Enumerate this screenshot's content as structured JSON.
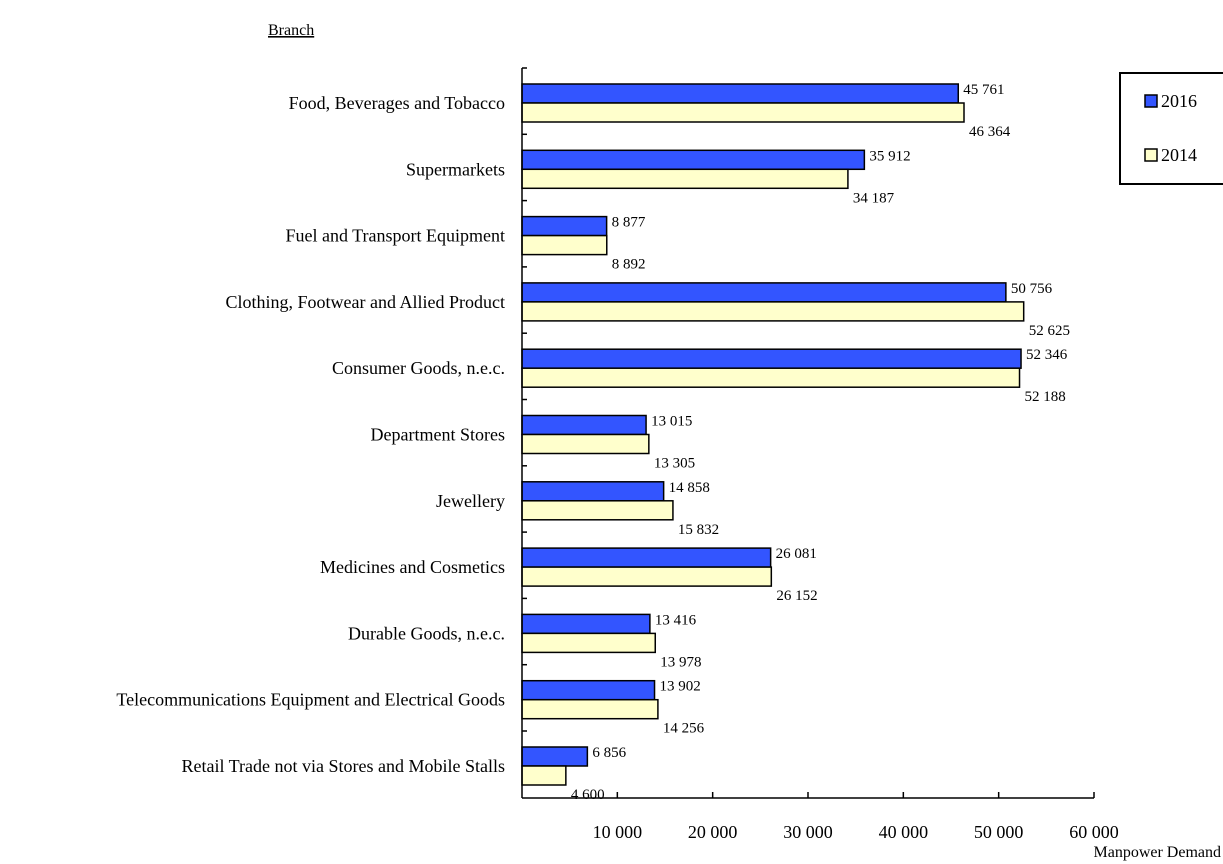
{
  "chart_data": {
    "type": "bar",
    "orientation": "horizontal",
    "y_axis_title": "Branch",
    "x_axis_title": "Manpower Demand",
    "categories": [
      "Food, Beverages and Tobacco",
      "Supermarkets",
      "Fuel and Transport Equipment",
      "Clothing, Footwear and Allied Product",
      "Consumer Goods, n.e.c.",
      "Department Stores",
      "Jewellery",
      "Medicines and Cosmetics",
      "Durable Goods, n.e.c.",
      "Telecommunications Equipment and Electrical Goods",
      "Retail Trade not via Stores and Mobile Stalls"
    ],
    "series": [
      {
        "name": "2016",
        "color": "#3355ff",
        "values": [
          45761,
          35912,
          8877,
          50756,
          52346,
          13015,
          14858,
          26081,
          13416,
          13902,
          6856
        ],
        "value_labels": [
          "45 761",
          "35 912",
          "8 877",
          "50 756",
          "52 346",
          "13 015",
          "14 858",
          "26 081",
          "13 416",
          "13 902",
          "6 856"
        ]
      },
      {
        "name": "2014",
        "color": "#ffffcc",
        "values": [
          46364,
          34187,
          8892,
          52625,
          52188,
          13305,
          15832,
          26152,
          13978,
          14256,
          4600
        ],
        "value_labels": [
          "46 364",
          "34 187",
          "8 892",
          "52 625",
          "52 188",
          "13 305",
          "15 832",
          "26 152",
          "13 978",
          "14 256",
          "4 600"
        ]
      }
    ],
    "xlim": [
      0,
      60000
    ],
    "x_ticks": [
      10000,
      20000,
      30000,
      40000,
      50000,
      60000
    ],
    "x_tick_labels": [
      "10 000",
      "20 000",
      "30 000",
      "40 000",
      "50 000",
      "60 000"
    ],
    "grid": false,
    "legend": {
      "position": "top-right",
      "entries": [
        "2016",
        "2014"
      ]
    }
  }
}
